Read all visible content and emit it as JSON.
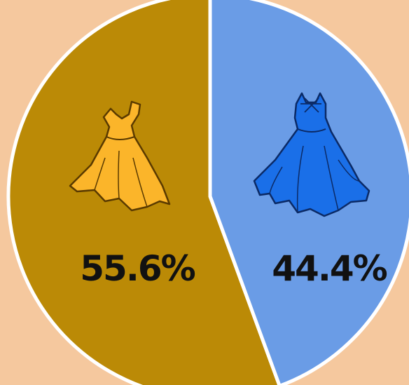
{
  "chart_data": {
    "type": "pie",
    "title": "",
    "slices": [
      {
        "label": "55.6%",
        "value": 55.6,
        "color": "#bb8a06",
        "icon": "yellow-dress-icon"
      },
      {
        "label": "44.4%",
        "value": 44.4,
        "color": "#6a9ce6",
        "icon": "blue-dress-icon"
      }
    ],
    "start_angle_deg": 0,
    "direction": "counterclockwise",
    "background": "#f5c89e",
    "slice_border_color": "#ffffff"
  }
}
